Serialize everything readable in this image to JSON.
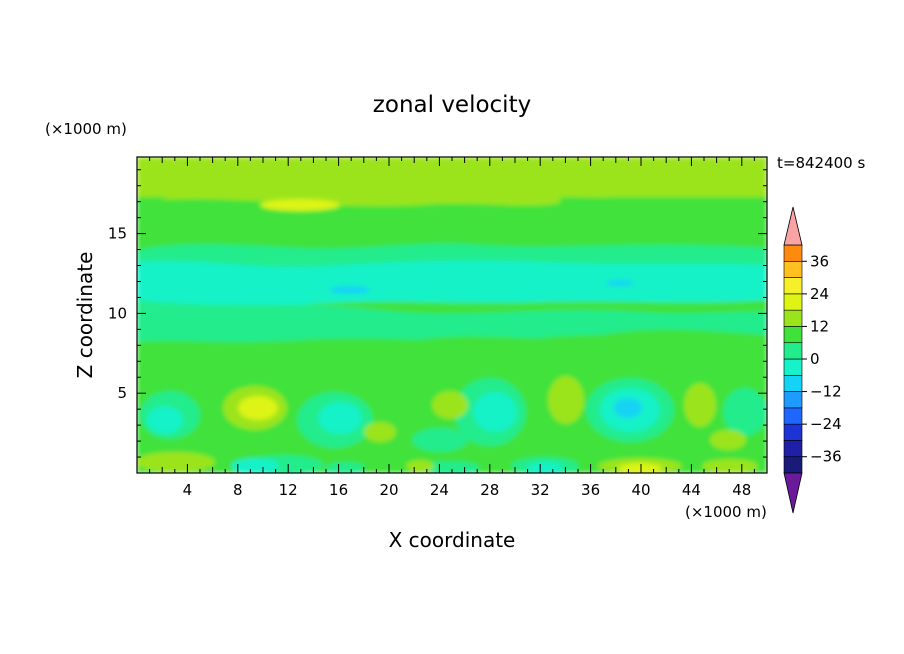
{
  "chart_data": {
    "type": "heatmap",
    "title": "zonal velocity",
    "time_label": "t=842400 s",
    "xlabel": "X coordinate",
    "ylabel": "Z coordinate",
    "x_unit": "(×1000 m)",
    "y_unit": "(×1000 m)",
    "xlim": [
      0,
      50
    ],
    "ylim": [
      0,
      19.8
    ],
    "x_ticks": [
      4,
      8,
      12,
      16,
      20,
      24,
      28,
      32,
      36,
      40,
      44,
      48
    ],
    "y_ticks": [
      5,
      10,
      15
    ],
    "colorbar": {
      "min": -42,
      "max": 42,
      "step": 6,
      "tick_values": [
        36,
        24,
        12,
        0,
        -12,
        -24,
        -36
      ],
      "extend": "both",
      "colors": [
        "#6a1a9a",
        "#1a1a78",
        "#1f1fa8",
        "#1c34d6",
        "#1f66ff",
        "#1e9bff",
        "#14d3f4",
        "#18f2c8",
        "#22ec8c",
        "#3fe23a",
        "#9be41c",
        "#ddf414",
        "#f6f02a",
        "#ffc020",
        "#ff8a10",
        "#ff5010",
        "#f22416",
        "#f9a3a3"
      ]
    },
    "grid": false,
    "legend": "colorbar right"
  }
}
